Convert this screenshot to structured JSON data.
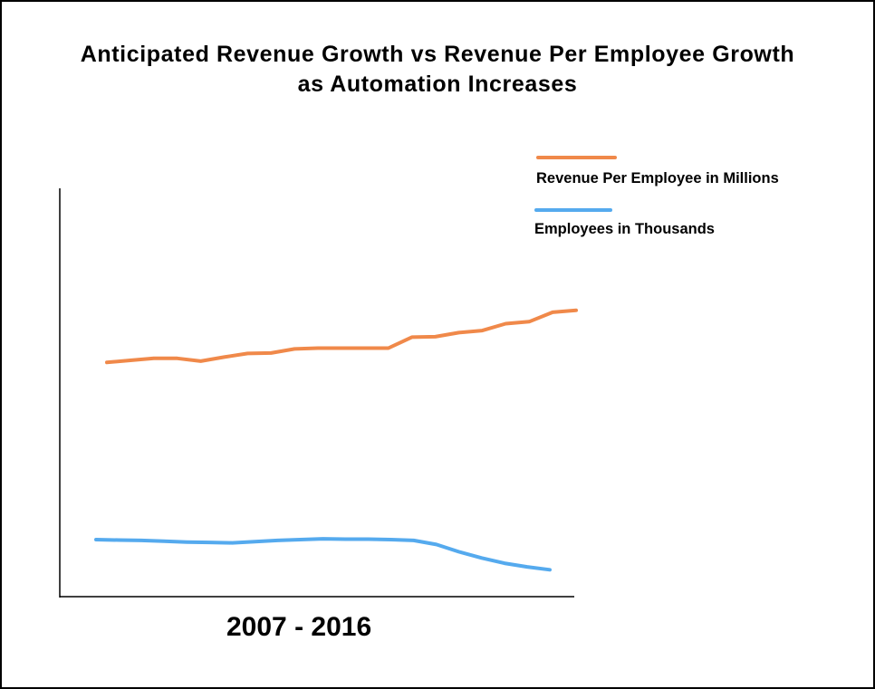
{
  "chart_data": {
    "type": "line",
    "title_lines": [
      "Anticipated Revenue Growth vs Revenue Per Employee Growth",
      "as Automation Increases"
    ],
    "xlabel": "2007 - 2016",
    "ylabel": "",
    "ticks_shown": false,
    "grid": false,
    "legend_position": "top-right",
    "xlim": [
      0,
      100
    ],
    "ylim": [
      0,
      100
    ],
    "x": [
      0,
      5,
      10,
      15,
      20,
      25,
      30,
      35,
      40,
      45,
      50,
      55,
      60,
      65,
      70,
      75,
      80,
      85,
      90,
      95,
      100
    ],
    "series": [
      {
        "name": "Revenue Per Employee in Millions",
        "color": "#f0894a",
        "values": [
          57.5,
          58,
          58.5,
          58.5,
          57.8,
          58.8,
          59.7,
          59.8,
          60.8,
          61,
          61,
          61,
          61,
          63.7,
          63.8,
          64.8,
          65.3,
          67,
          67.5,
          69.8,
          70.3
        ]
      },
      {
        "name": "Employees in Thousands",
        "color": "#55aaee",
        "values": [
          14,
          13.9,
          13.8,
          13.6,
          13.4,
          13.3,
          13.2,
          13.5,
          13.8,
          14,
          14.2,
          14.1,
          14.1,
          14,
          13.8,
          12.8,
          11,
          9.5,
          8.2,
          7.3,
          6.6
        ]
      }
    ]
  }
}
